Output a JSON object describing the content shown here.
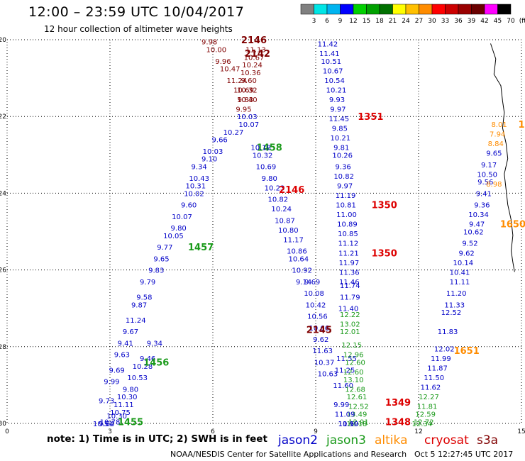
{
  "header": {
    "title": "12:00  –  23:59 UTC 10/04/2017",
    "subtitle": "12 hour collection of altimeter wave heights"
  },
  "colorbar": {
    "ticks": [
      "3",
      "6",
      "9",
      "12",
      "15",
      "18",
      "21",
      "24",
      "27",
      "30",
      "33",
      "36",
      "39",
      "42",
      "45",
      "70",
      "(ft)"
    ],
    "colors": [
      "#808080",
      "#00e5e5",
      "#00b4f0",
      "#0000ff",
      "#00d000",
      "#00a000",
      "#007000",
      "#ffff00",
      "#ffc000",
      "#ff8c00",
      "#ff0000",
      "#cc0000",
      "#990000",
      "#6a0000",
      "#ff00ff",
      "#000000"
    ]
  },
  "footer": {
    "note": "note:  1) Time is in UTC;  2) SWH is in feet",
    "credit": "NOAA/NESDIS Center for Satellite Applications and Research",
    "generated": "Oct  5 12:27:45 UTC 2017"
  },
  "chart_data": {
    "type": "scatter",
    "title": "12:00  –  23:59 UTC 10/04/2017",
    "subtitle": "12 hour collection of altimeter wave heights",
    "xlim": [
      0,
      15
    ],
    "ylim": [
      -30,
      -20
    ],
    "xticks": [
      "0",
      "3",
      "6",
      "9",
      "12",
      "15"
    ],
    "yticks": [
      "-20",
      "-22",
      "-24",
      "-26",
      "-28",
      "-30"
    ],
    "grid": true,
    "legend": [
      {
        "name": "jason2",
        "color": "#0000c8"
      },
      {
        "name": "jason3",
        "color": "#1a9a1a"
      },
      {
        "name": "altika",
        "color": "#ff8c00"
      },
      {
        "name": "cryosat",
        "color": "#dd0000"
      },
      {
        "name": "s3a",
        "color": "#800000"
      }
    ],
    "passes": [
      {
        "satellite": "s3a",
        "label": "2146",
        "label_x": 7.2,
        "label_y": -20.0,
        "x": [
          5.9,
          6.1,
          6.3,
          6.5,
          6.7,
          6.9,
          7.0
        ],
        "y": [
          -20.05,
          -20.25,
          -20.55,
          -20.75,
          -21.05,
          -21.3,
          -21.55
        ],
        "values": [
          "9.98",
          "10.00",
          "9.96",
          "10.47",
          "11.24",
          "10.69",
          "10.40"
        ]
      },
      {
        "satellite": "s3a",
        "label": "2142",
        "label_x": 7.3,
        "label_y": -20.35,
        "x": [
          7.25,
          7.2,
          7.15,
          7.1,
          7.05,
          7.0,
          6.95,
          6.9
        ],
        "y": [
          -20.25,
          -20.45,
          -20.65,
          -20.85,
          -21.05,
          -21.3,
          -21.55,
          -21.8
        ],
        "values": [
          "11.13",
          "10.67",
          "10.24",
          "10.36",
          "9.60",
          "10.32",
          "9.83",
          "9.95"
        ]
      },
      {
        "satellite": "jason2",
        "label": "",
        "label_x": 0,
        "label_y": 0,
        "x": [
          7.0,
          7.05,
          6.6,
          6.2,
          6.0,
          5.9,
          5.6,
          5.6,
          5.5,
          5.45,
          5.3,
          5.1,
          5.0,
          4.85,
          4.6,
          4.5,
          4.35,
          4.1,
          4.0,
          3.85,
          3.75,
          3.6,
          3.45,
          3.35,
          3.2,
          3.05,
          2.9
        ],
        "y": [
          -22.0,
          -22.2,
          -22.4,
          -22.6,
          -22.9,
          -23.1,
          -23.3,
          -23.6,
          -23.8,
          -24.0,
          -24.3,
          -24.6,
          -24.9,
          -25.1,
          -25.4,
          -25.7,
          -26.0,
          -26.3,
          -26.7,
          -26.9,
          -27.3,
          -27.6,
          -27.9,
          -28.2,
          -28.6,
          -28.9,
          -29.4
        ],
        "values": [
          "10.03",
          "10.07",
          "10.27",
          "9.66",
          "10.03",
          "9.10",
          "9.34",
          "10.43",
          "10.31",
          "10.02",
          "9.60",
          "10.07",
          "9.80",
          "10.05",
          "9.77",
          "9.65",
          "9.83",
          "9.79",
          "9.58",
          "9.87",
          "11.24",
          "9.67",
          "9.41",
          "9.63",
          "9.69",
          "9.99",
          "9.73"
        ]
      },
      {
        "satellite": "jason2",
        "label": "",
        "label_x": 0,
        "label_y": 0,
        "x": [
          4.3,
          4.1,
          3.95,
          3.8,
          3.6,
          3.5,
          3.4,
          3.3,
          3.2,
          3.0,
          2.9,
          2.8
        ],
        "y": [
          -27.9,
          -28.3,
          -28.5,
          -28.8,
          -29.1,
          -29.3,
          -29.5,
          -29.7,
          -29.8,
          -29.95,
          -30.0,
          -30.0
        ],
        "values": [
          "9.34",
          "9.46",
          "10.28",
          "10.53",
          "9.80",
          "10.30",
          "11.11",
          "10.75",
          "10.30",
          "10.78",
          "9.64",
          "10.51"
        ]
      },
      {
        "satellite": "jason3",
        "label": "1457",
        "label_x": 5.65,
        "label_y": -25.4,
        "x": [],
        "y": [],
        "values": []
      },
      {
        "satellite": "jason3",
        "label": "1456",
        "label_x": 4.35,
        "label_y": -28.4,
        "x": [],
        "y": [],
        "values": []
      },
      {
        "satellite": "jason3",
        "label": "1455",
        "label_x": 3.6,
        "label_y": -29.95,
        "x": [],
        "y": [],
        "values": []
      },
      {
        "satellite": "jason3",
        "label": "1458",
        "label_x": 7.65,
        "label_y": -22.8,
        "x": [],
        "y": [],
        "values": []
      },
      {
        "satellite": "jason2",
        "label": "",
        "label_x": 0,
        "label_y": 0,
        "x": [
          7.4,
          7.45,
          7.55,
          7.65,
          7.8,
          7.9,
          8.0,
          8.1,
          8.2,
          8.35,
          8.45,
          8.5,
          8.6,
          8.65
        ],
        "y": [
          -22.8,
          -23.0,
          -23.3,
          -23.6,
          -23.85,
          -24.15,
          -24.4,
          -24.7,
          -24.95,
          -25.2,
          -25.5,
          -25.7,
          -26.0,
          -26.3
        ],
        "values": [
          "10.18",
          "10.32",
          "10.69",
          "9.80",
          "10.23",
          "10.82",
          "10.24",
          "10.87",
          "10.80",
          "11.17",
          "10.86",
          "10.64",
          "10.92",
          "9.14"
        ]
      },
      {
        "satellite": "jason2",
        "label": "",
        "label_x": 0,
        "label_y": 0,
        "x": [
          8.9,
          8.95,
          9.0,
          9.05,
          9.1,
          9.15,
          9.2,
          9.25,
          9.35
        ],
        "y": [
          -26.3,
          -26.6,
          -26.9,
          -27.2,
          -27.5,
          -27.8,
          -28.1,
          -28.4,
          -28.7
        ],
        "values": [
          "9.69",
          "10.08",
          "10.42",
          "10.56",
          "10.66",
          "9.62",
          "11.63",
          "10.37",
          "10.63"
        ]
      },
      {
        "satellite": "cryosat",
        "label": "2146",
        "label_x": 8.3,
        "label_y": -23.9,
        "x": [],
        "y": [],
        "values": []
      },
      {
        "satellite": "s3a",
        "label": "2145",
        "label_x": 9.1,
        "label_y": -27.55,
        "x": [],
        "y": [],
        "values": []
      },
      {
        "satellite": "jason2",
        "label": "",
        "label_x": 0,
        "label_y": 0,
        "x": [
          9.35,
          9.4,
          9.45,
          9.5,
          9.55,
          9.6,
          9.62,
          9.65,
          9.68,
          9.7,
          9.72,
          9.75,
          9.78,
          9.8,
          9.82,
          9.85,
          9.87,
          9.88,
          9.9,
          9.92,
          9.94,
          9.95,
          9.96,
          9.97,
          9.98,
          9.98
        ],
        "y": [
          -20.1,
          -20.35,
          -20.55,
          -20.8,
          -21.05,
          -21.3,
          -21.55,
          -21.8,
          -22.05,
          -22.3,
          -22.55,
          -22.8,
          -23.0,
          -23.3,
          -23.55,
          -23.8,
          -24.05,
          -24.3,
          -24.55,
          -24.8,
          -25.05,
          -25.3,
          -25.55,
          -25.8,
          -26.05,
          -26.3
        ],
        "values": [
          "11.42",
          "11.41",
          "10.51",
          "10.67",
          "10.54",
          "10.21",
          "9.93",
          "9.97",
          "11.45",
          "9.85",
          "10.21",
          "9.81",
          "10.26",
          "9.36",
          "10.82",
          "9.97",
          "11.19",
          "10.81",
          "11.00",
          "10.89",
          "10.85",
          "11.12",
          "11.21",
          "11.97",
          "11.36",
          "11.46"
        ]
      },
      {
        "satellite": "cryosat",
        "label": "1351",
        "label_x": 10.6,
        "label_y": -22.0,
        "x": [],
        "y": [],
        "values": []
      },
      {
        "satellite": "cryosat",
        "label": "1350",
        "label_x": 11.0,
        "label_y": -24.3,
        "x": [],
        "y": [],
        "values": []
      },
      {
        "satellite": "cryosat",
        "label": "1350",
        "label_x": 11.0,
        "label_y": -25.55,
        "x": [],
        "y": [],
        "values": []
      },
      {
        "satellite": "jason2",
        "label": "",
        "label_x": 0,
        "label_y": 0,
        "x": [
          10.0,
          10.0,
          9.95,
          9.9,
          9.85,
          9.8,
          9.75
        ],
        "y": [
          -26.4,
          -26.7,
          -27.0,
          -28.3,
          -28.6,
          -29.0,
          -29.5
        ],
        "values": [
          "11.74",
          "11.79",
          "11.40",
          "11.55",
          "11.25",
          "11.60",
          "9.99"
        ]
      },
      {
        "satellite": "jason3",
        "label": "",
        "label_x": 0,
        "label_y": 0,
        "x": [
          10.0,
          10.0,
          10.0,
          10.05,
          10.1,
          10.15,
          10.1,
          10.1,
          10.15,
          10.2,
          10.25,
          10.2,
          10.25,
          10.2
        ],
        "y": [
          -27.15,
          -27.4,
          -27.6,
          -27.95,
          -28.2,
          -28.4,
          -28.65,
          -28.85,
          -29.1,
          -29.3,
          -29.55,
          -29.75,
          -29.95,
          -30.0
        ],
        "values": [
          "12.22",
          "13.02",
          "12.01",
          "12.15",
          "12.96",
          "12.60",
          "12.60",
          "13.10",
          "12.68",
          "12.61",
          "12.52",
          "13.49",
          "12.91",
          "12.18"
        ]
      },
      {
        "satellite": "jason2",
        "label": "",
        "label_x": 0,
        "label_y": 0,
        "x": [
          9.85,
          9.95
        ],
        "y": [
          -29.75,
          -30.0
        ],
        "values": [
          "11.09",
          "11.10"
        ]
      },
      {
        "satellite": "jason2",
        "label": "",
        "label_x": 0,
        "label_y": 0,
        "x": [
          9.95
        ],
        "y": [
          -30.0
        ],
        "values": [
          "10.99"
        ]
      },
      {
        "satellite": "cryosat",
        "label": "1349",
        "label_x": 11.4,
        "label_y": -29.45,
        "x": [],
        "y": [],
        "values": []
      },
      {
        "satellite": "cryosat",
        "label": "1348",
        "label_x": 11.4,
        "label_y": -29.95,
        "x": [],
        "y": [],
        "values": []
      },
      {
        "satellite": "jason2",
        "label": "",
        "label_x": 0,
        "label_y": 0,
        "x": [
          14.2,
          14.05,
          14.0,
          13.95,
          13.9,
          13.85,
          13.75,
          13.7,
          13.6,
          13.5,
          13.4,
          13.3,
          13.2
        ],
        "y": [
          -22.95,
          -23.25,
          -23.5,
          -23.7,
          -24.0,
          -24.3,
          -24.55,
          -24.8,
          -25.0,
          -25.3,
          -25.55,
          -25.8,
          -26.05
        ],
        "values": [
          "9.65",
          "9.17",
          "10.50",
          "9.56",
          "9.41",
          "9.36",
          "10.34",
          "9.47",
          "10.62",
          "9.52",
          "9.62",
          "10.14",
          "10.41"
        ]
      },
      {
        "satellite": "altika",
        "label": "1",
        "label_x": 15.0,
        "label_y": -22.2,
        "x": [
          14.35,
          14.3,
          14.25,
          14.2
        ],
        "y": [
          -22.2,
          -22.45,
          -22.7,
          -23.75
        ],
        "values": [
          "8.01",
          "7.94",
          "8.84",
          "8.98"
        ]
      },
      {
        "satellite": "altika",
        "label": "1650",
        "label_x": 14.75,
        "label_y": -24.8,
        "x": [],
        "y": [],
        "values": []
      },
      {
        "satellite": "jason2",
        "label": "",
        "label_x": 0,
        "label_y": 0,
        "x": [
          13.2,
          13.1,
          13.05,
          12.95,
          12.85,
          12.75,
          12.65,
          12.55,
          12.45,
          12.35
        ],
        "y": [
          -26.3,
          -26.6,
          -26.9,
          -27.1,
          -27.6,
          -28.05,
          -28.3,
          -28.55,
          -28.8,
          -29.05
        ],
        "values": [
          "11.11",
          "11.20",
          "11.33",
          "12.52",
          "11.83",
          "12.02",
          "11.99",
          "11.87",
          "11.50",
          "11.62"
        ]
      },
      {
        "satellite": "jason3",
        "label": "",
        "label_x": 0,
        "label_y": 0,
        "x": [
          12.3,
          12.25,
          12.2,
          12.15,
          12.1
        ],
        "y": [
          -29.3,
          -29.55,
          -29.75,
          -29.95,
          -30.0
        ],
        "values": [
          "12.27",
          "11.81",
          "12.59",
          "12.72",
          "12.34"
        ]
      },
      {
        "satellite": "altika",
        "label": "1651",
        "label_x": 13.4,
        "label_y": -28.1,
        "x": [],
        "y": [],
        "values": []
      }
    ]
  }
}
